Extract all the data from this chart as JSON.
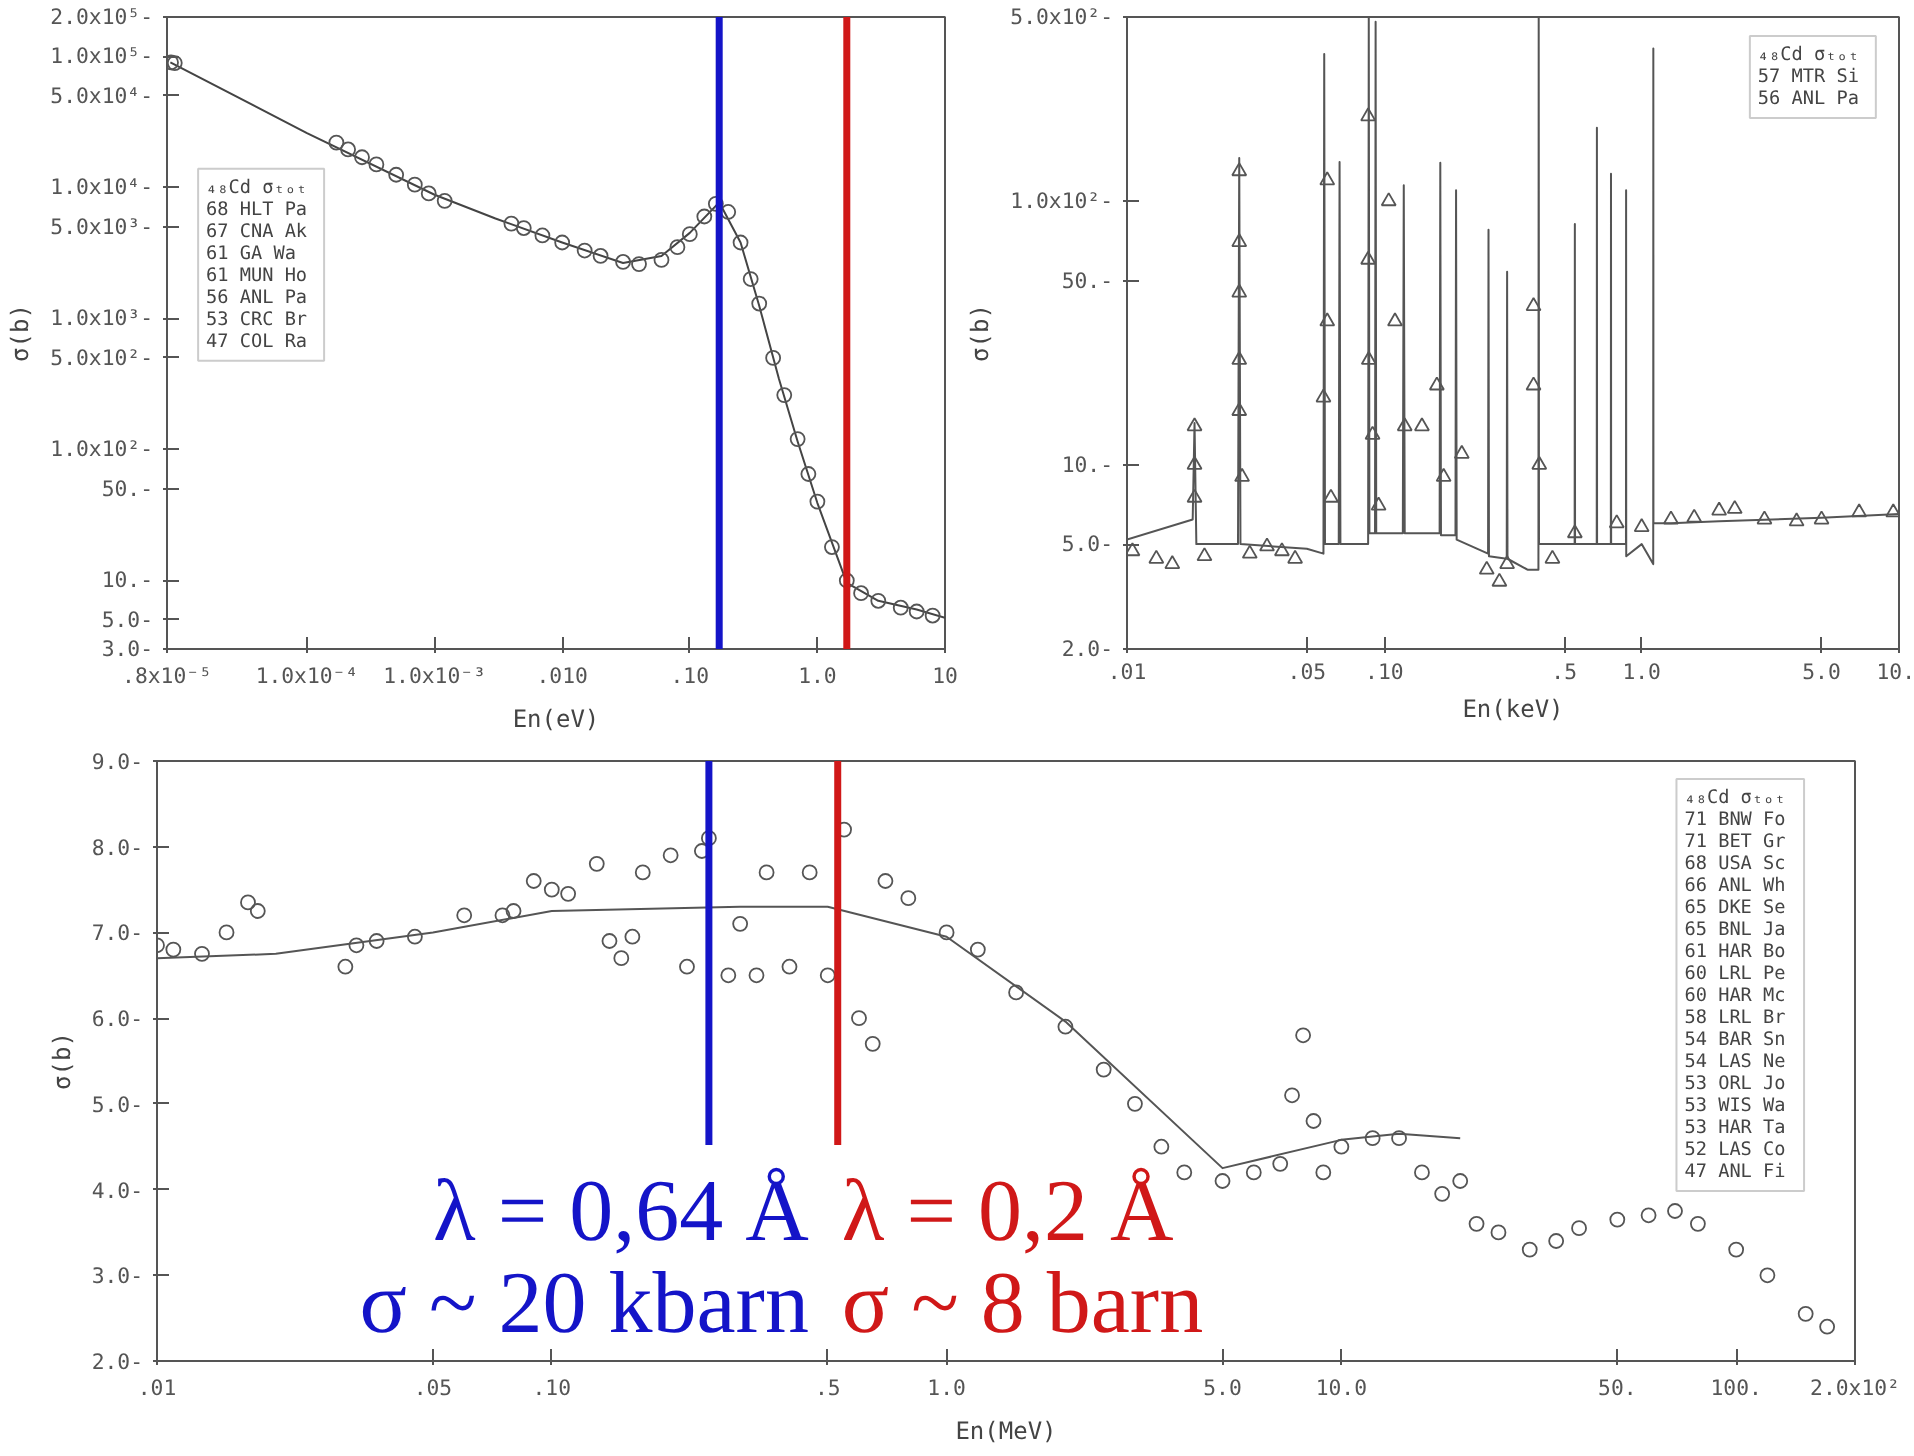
{
  "chart_data": [
    {
      "type": "line",
      "xlabel": "En(eV)",
      "ylabel": "σ(b)",
      "log": "xy",
      "legend_title": "₄₈Cd σₜₒₜ",
      "xlim": [
        8e-06,
        10
      ],
      "ylim": [
        3,
        200000
      ],
      "xticks": [
        {
          "value": 8e-06,
          "label": ".8x10⁻⁵"
        },
        {
          "value": 0.0001,
          "label": "1.0x10⁻⁴"
        },
        {
          "value": 0.001,
          "label": "1.0x10⁻³"
        },
        {
          "value": 0.01,
          "label": ".010"
        },
        {
          "value": 0.1,
          "label": ".10"
        },
        {
          "value": 1,
          "label": "1.0"
        },
        10
      ],
      "yticks": [
        {
          "value": 3,
          "label": "3.0-"
        },
        {
          "value": 5,
          "label": "5.0-"
        },
        {
          "value": 10,
          "label": "10.-"
        },
        {
          "value": 50,
          "label": "50.-"
        },
        {
          "value": 100,
          "label": "1.0x10²-"
        },
        {
          "value": 500,
          "label": "5.0x10²-"
        },
        {
          "value": 1000,
          "label": "1.0x10³-"
        },
        {
          "value": 5000,
          "label": "5.0x10³-"
        },
        {
          "value": 10000,
          "label": "1.0x10⁴-"
        },
        {
          "value": 50000,
          "label": "5.0x10⁴-"
        },
        {
          "value": 100000,
          "label": "1.0x10⁵-"
        },
        {
          "value": 200000,
          "label": "2.0x10⁵-"
        }
      ],
      "ref_lines": [
        {
          "axis": "x",
          "value": 0.17,
          "color": "#1414c8"
        },
        {
          "axis": "x",
          "value": 1.7,
          "color": "#d01818"
        }
      ],
      "annotations": [
        "68 HLT Pa",
        "67 CNA Ak",
        "61 GA Wa",
        "61 MUN Ho",
        "56 ANL Pa",
        "53 CRC Br",
        "47 COL Ra"
      ],
      "series": [
        {
          "color": "#444444",
          "x": [
            8.5e-06,
            0.0001,
            0.001,
            0.003,
            0.01,
            0.03,
            0.06,
            0.1,
            0.17,
            0.25,
            0.35,
            0.5,
            0.7,
            1.0,
            1.7,
            3,
            6,
            10
          ],
          "values": [
            90000,
            26000,
            8800,
            5800,
            3800,
            2650,
            3000,
            4500,
            7700,
            3800,
            1250,
            345,
            115,
            39,
            9.6,
            7,
            6,
            5.2
          ]
        },
        {
          "type": "scatter",
          "marker": "circle",
          "color": "#555555",
          "x": [
            8.6e-06,
            9.2e-06,
            0.00017,
            0.00021,
            0.00027,
            0.00035,
            0.0005,
            0.0007,
            0.0009,
            0.0012,
            0.004,
            0.005,
            0.007,
            0.01,
            0.015,
            0.02,
            0.03,
            0.04,
            0.06,
            0.08,
            0.1,
            0.13,
            0.16,
            0.2,
            0.25,
            0.3,
            0.35,
            0.45,
            0.55,
            0.7,
            0.85,
            1.0,
            1.3,
            1.7,
            2.2,
            3,
            4.5,
            6,
            8
          ],
          "values": [
            90000,
            89000,
            22000,
            19500,
            17000,
            15000,
            12500,
            10500,
            9000,
            7900,
            5300,
            4900,
            4300,
            3800,
            3300,
            3000,
            2700,
            2600,
            2800,
            3500,
            4400,
            6000,
            7500,
            6500,
            3800,
            2000,
            1300,
            500,
            260,
            120,
            65,
            40,
            18,
            10,
            8,
            7,
            6.2,
            5.8,
            5.4
          ]
        }
      ]
    },
    {
      "type": "line",
      "xlabel": "En(keV)",
      "ylabel": "σ(b)",
      "log": "xy",
      "legend_title": "₄₈Cd σₜₒₜ",
      "xlim": [
        0.01,
        10
      ],
      "ylim": [
        2,
        500
      ],
      "xticks": [
        {
          "value": 0.01,
          "label": ".01"
        },
        {
          "value": 0.05,
          "label": ".05"
        },
        {
          "value": 0.1,
          "label": ".10"
        },
        {
          "value": 0.5,
          "label": ".5"
        },
        {
          "value": 1,
          "label": "1.0"
        },
        {
          "value": 5,
          "label": "5.0"
        },
        {
          "value": 10,
          "label": "10."
        }
      ],
      "yticks": [
        {
          "value": 2,
          "label": "2.0-"
        },
        {
          "value": 5,
          "label": "5.0-"
        },
        {
          "value": 10,
          "label": "10.-"
        },
        {
          "value": 50,
          "label": "50.-"
        },
        {
          "value": 100,
          "label": "1.0x10²-"
        },
        {
          "value": 500,
          "label": "5.0x10²-"
        }
      ],
      "annotations": [
        "57 MTR Si",
        "56 ANL Pa"
      ],
      "series": [
        {
          "color": "#555555",
          "x": [
            0.01,
            0.018,
            0.0183,
            0.0186,
            0.027,
            0.0273,
            0.0276,
            0.05,
            0.058,
            0.0584,
            0.0588,
            0.0665,
            0.067,
            0.0675,
            0.0865,
            0.087,
            0.0875,
            0.092,
            0.0925,
            0.093,
            0.118,
            0.119,
            0.12,
            0.164,
            0.165,
            0.166,
            0.189,
            0.19,
            0.191,
            0.253,
            0.254,
            0.255,
            0.299,
            0.3,
            0.301,
            0.36,
            0.397,
            0.398,
            0.399,
            0.45,
            0.549,
            0.55,
            0.551,
            0.669,
            0.67,
            0.671,
            0.759,
            0.76,
            0.761,
            0.869,
            0.87,
            0.871,
            1.0,
            1.109,
            1.11,
            1.111,
            1.3,
            2,
            5,
            10
          ],
          "values": [
            5.2,
            6.2,
            14.4,
            5.0,
            5.0,
            146,
            5.0,
            4.8,
            4.6,
            362,
            5.0,
            5.0,
            141,
            5.0,
            5.0,
            500,
            5.5,
            5.5,
            480,
            5.5,
            5.5,
            115,
            5.5,
            5.5,
            140,
            5.4,
            5.4,
            110,
            5.2,
            4.6,
            78,
            4.5,
            4.4,
            54,
            4.4,
            4.0,
            4.0,
            500,
            5.0,
            5.0,
            5.0,
            82,
            5.0,
            5.0,
            190,
            5.0,
            5.0,
            127,
            5.0,
            5.0,
            110,
            4.5,
            5.0,
            4.2,
            380,
            6.0,
            6.0,
            6.1,
            6.3,
            6.5
          ]
        },
        {
          "type": "scatter",
          "marker": "triangle",
          "color": "#555555",
          "x": [
            0.0105,
            0.013,
            0.015,
            0.0183,
            0.0183,
            0.0183,
            0.02,
            0.0273,
            0.0273,
            0.0273,
            0.0273,
            0.0273,
            0.028,
            0.03,
            0.035,
            0.04,
            0.045,
            0.058,
            0.06,
            0.06,
            0.062,
            0.0865,
            0.0865,
            0.087,
            0.09,
            0.095,
            0.104,
            0.11,
            0.12,
            0.14,
            0.16,
            0.17,
            0.2,
            0.25,
            0.28,
            0.3,
            0.38,
            0.38,
            0.4,
            0.45,
            0.55,
            0.8,
            1.0,
            1.3,
            1.6,
            2.0,
            2.3,
            3.0,
            4.0,
            5.0,
            7.0,
            9.5
          ],
          "values": [
            4.7,
            4.4,
            4.2,
            14,
            10,
            7.5,
            4.5,
            130,
            70,
            45,
            25,
            16,
            9,
            4.6,
            4.9,
            4.7,
            4.4,
            18,
            120,
            35,
            7.5,
            210,
            60,
            25,
            13,
            7,
            100,
            35,
            14,
            14,
            20,
            9,
            11,
            4,
            3.6,
            4.2,
            40,
            20,
            10,
            4.4,
            5.5,
            6,
            5.8,
            6.2,
            6.3,
            6.7,
            6.8,
            6.2,
            6.1,
            6.2,
            6.6,
            6.6
          ]
        }
      ]
    },
    {
      "type": "line",
      "xlabel": "En(MeV)",
      "ylabel": "σ(b)",
      "log": "x",
      "legend_title": "₄₈Cd σₜₒₜ",
      "xlim": [
        0.01,
        200
      ],
      "ylim": [
        2,
        9
      ],
      "xticks": [
        {
          "value": 0.01,
          "label": ".01"
        },
        {
          "value": 0.05,
          "label": ".05"
        },
        {
          "value": 0.1,
          "label": ".10"
        },
        {
          "value": 0.5,
          "label": ".5"
        },
        {
          "value": 1,
          "label": "1.0"
        },
        {
          "value": 5,
          "label": "5.0"
        },
        {
          "value": 10,
          "label": "10.0"
        },
        {
          "value": 50,
          "label": "50."
        },
        {
          "value": 100,
          "label": "100."
        },
        {
          "value": 200,
          "label": "2.0x10²"
        }
      ],
      "yticks": [
        {
          "value": 2,
          "label": "2.0-"
        },
        {
          "value": 3,
          "label": "3.0-"
        },
        {
          "value": 4,
          "label": "4.0-"
        },
        {
          "value": 5,
          "label": "5.0-"
        },
        {
          "value": 6,
          "label": "6.0-"
        },
        {
          "value": 7,
          "label": "7.0-"
        },
        {
          "value": 8,
          "label": "8.0-"
        },
        {
          "value": 9,
          "label": "9.0-"
        }
      ],
      "ref_lines": [
        {
          "axis": "x",
          "value": 0.25,
          "color": "#1414c8"
        },
        {
          "axis": "x",
          "value": 0.53,
          "color": "#d01818"
        }
      ],
      "annotations": [
        "71 BNW Fo",
        "71 BET Gr",
        "68 USA Sc",
        "66 ANL Wh",
        "65 DKE Se",
        "65 BNL Ja",
        "61 HAR Bo",
        "60 LRL Pe",
        "60 HAR Mc",
        "58 LRL Br",
        "54 BAR Sn",
        "54 LAS Ne",
        "53 ORL Jo",
        "53 WIS Wa",
        "53 HAR Ta",
        "52 LAS Co",
        "47 ANL Fi",
        "λ = 0,64 Å",
        "σ ~ 20 kbarn",
        "λ = 0,2 Å",
        "σ ~ 8 barn"
      ],
      "series": [
        {
          "color": "#555555",
          "x": [
            0.01,
            0.02,
            0.05,
            0.1,
            0.3,
            0.5,
            1.0,
            2.0,
            5.0,
            10,
            14,
            20
          ],
          "values": [
            6.7,
            6.75,
            7.0,
            7.25,
            7.3,
            7.3,
            6.95,
            5.96,
            4.25,
            4.58,
            4.65,
            4.6
          ]
        },
        {
          "type": "scatter",
          "marker": "circle",
          "color": "#555555",
          "x": [
            0.01,
            0.011,
            0.013,
            0.015,
            0.017,
            0.018,
            0.03,
            0.032,
            0.036,
            0.045,
            0.06,
            0.075,
            0.08,
            0.09,
            0.1,
            0.11,
            0.13,
            0.14,
            0.15,
            0.16,
            0.17,
            0.2,
            0.22,
            0.24,
            0.25,
            0.28,
            0.3,
            0.33,
            0.35,
            0.4,
            0.45,
            0.5,
            0.55,
            0.6,
            0.65,
            0.7,
            0.8,
            1.0,
            1.2,
            1.5,
            2.0,
            2.5,
            3.0,
            3.5,
            4.0,
            5.0,
            6.0,
            7.0,
            7.5,
            8.0,
            8.5,
            9.0,
            10,
            12,
            14,
            16,
            18,
            20,
            22,
            25,
            30,
            35,
            40,
            50,
            60,
            70,
            80,
            100,
            120,
            150,
            170
          ],
          "values": [
            6.85,
            6.8,
            6.75,
            7.0,
            7.35,
            7.25,
            6.6,
            6.85,
            6.9,
            6.95,
            7.2,
            7.2,
            7.25,
            7.6,
            7.5,
            7.45,
            7.8,
            6.9,
            6.7,
            6.95,
            7.7,
            7.9,
            6.6,
            7.95,
            8.1,
            6.5,
            7.1,
            6.5,
            7.7,
            6.6,
            7.7,
            6.5,
            8.2,
            6.0,
            5.7,
            7.6,
            7.4,
            7.0,
            6.8,
            6.3,
            5.9,
            5.4,
            5.0,
            4.5,
            4.2,
            4.1,
            4.2,
            4.3,
            5.1,
            5.8,
            4.8,
            4.2,
            4.5,
            4.6,
            4.6,
            4.2,
            3.95,
            4.1,
            3.6,
            3.5,
            3.3,
            3.4,
            3.55,
            3.65,
            3.7,
            3.75,
            3.6,
            3.3,
            3.0,
            2.55,
            2.4
          ]
        }
      ]
    }
  ]
}
